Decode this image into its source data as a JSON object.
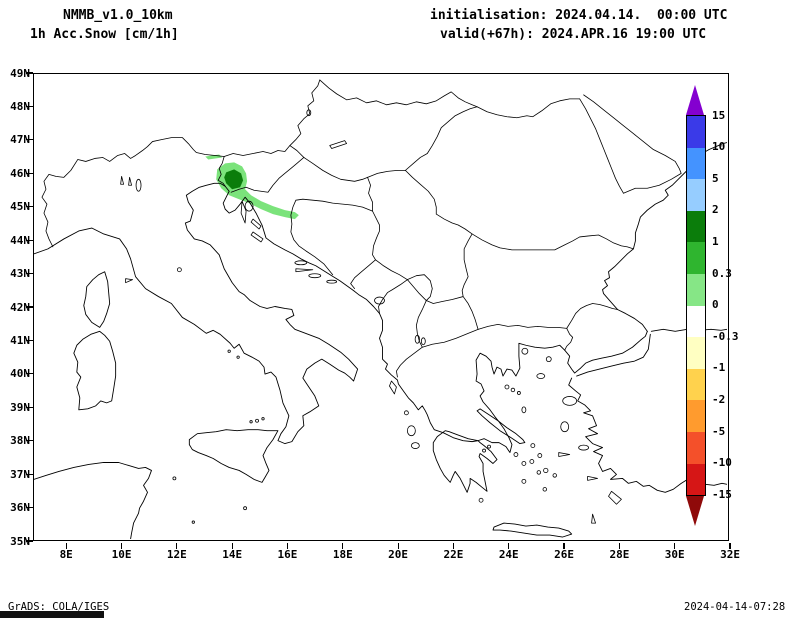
{
  "header": {
    "model": "NMMB_v1.0_10km",
    "field": "1h Acc.Snow [cm/1h]",
    "init": "initialisation: 2024.04.14.  00:00 UTC",
    "valid": "valid(+67h): 2024.APR.16 19:00 UTC"
  },
  "footer": {
    "left": "GrADS: COLA/IGES",
    "right": "2024-04-14-07:28"
  },
  "axes": {
    "lat_labels": [
      "49N",
      "48N",
      "47N",
      "46N",
      "45N",
      "44N",
      "43N",
      "42N",
      "41N",
      "40N",
      "39N",
      "38N",
      "37N",
      "36N",
      "35N"
    ],
    "lon_labels": [
      "8E",
      "10E",
      "12E",
      "14E",
      "16E",
      "18E",
      "20E",
      "22E",
      "24E",
      "26E",
      "28E",
      "30E",
      "32E"
    ]
  },
  "colorbar": {
    "labels": [
      "15",
      "10",
      "5",
      "2",
      "1",
      "0.3",
      "0",
      "-0.3",
      "-1",
      "-2",
      "-5",
      "-10",
      "-15"
    ],
    "segment_colors": [
      "#3a3ae8",
      "#4493ff",
      "#96cdff",
      "#0b7d0b",
      "#2fb52f",
      "#86e686",
      "#ffffff",
      "#ffffc2",
      "#ffd24d",
      "#ff9b2e",
      "#f4502a",
      "#d61616"
    ],
    "arrow_top_color": "#8400d0",
    "arrow_bottom_color": "#8f0a0a"
  },
  "map": {
    "snow_light": "#7be37b",
    "snow_dark": "#0b7d0b",
    "line_color": "#000000"
  },
  "chart_data": {
    "type": "filled-contour-map",
    "title": "1h Acc.Snow [cm/1h]",
    "x_ticks": [
      "8E",
      "10E",
      "12E",
      "14E",
      "16E",
      "18E",
      "20E",
      "22E",
      "24E",
      "26E",
      "28E",
      "30E",
      "32E"
    ],
    "y_ticks": [
      "49N",
      "48N",
      "47N",
      "46N",
      "45N",
      "44N",
      "43N",
      "42N",
      "41N",
      "40N",
      "39N",
      "38N",
      "37N",
      "36N",
      "35N"
    ],
    "levels": [
      -15,
      -10,
      -5,
      -2,
      -1,
      -0.3,
      0,
      0.3,
      1,
      2,
      5,
      10,
      15
    ],
    "filled_regions": [
      {
        "value_range": "0.3 to 1",
        "color": "#7be37b",
        "approx_lon": "13E-16E",
        "approx_lat": "44.8N-46.3N"
      },
      {
        "value_range": "1 to 2",
        "color": "#0b7d0b",
        "approx_lon": "13.8E-14.4E",
        "approx_lat": "45.4N-46N"
      }
    ],
    "legend_position": "right"
  }
}
